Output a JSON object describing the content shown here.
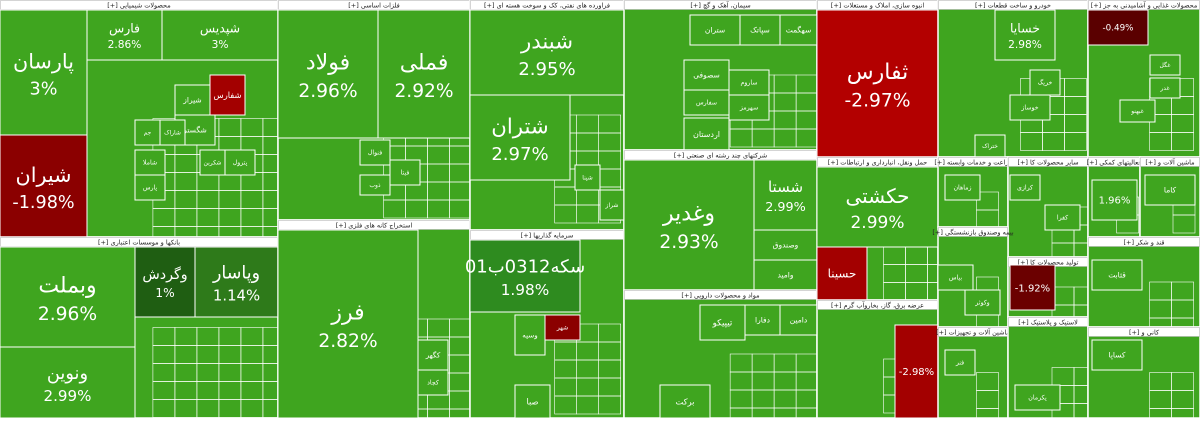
{
  "sectors": [
    {
      "title": "محصولات شیمیایی [+]",
      "tiles": [
        {
          "name": "پارسان",
          "change": "3%",
          "color": "#3fa51f"
        },
        {
          "name": "شیران",
          "change": "-1.98%",
          "color": "#8b0000"
        },
        {
          "name": "فارس",
          "change": "2.86%",
          "color": "#3fa51f"
        },
        {
          "name": "شپدیس",
          "change": "3%",
          "color": "#3fa51f"
        },
        {
          "name": "شیراز",
          "color": "#3fa51f"
        },
        {
          "name": "شفارس",
          "color": "#a30000"
        },
        {
          "name": "شگستر",
          "color": "#3fa51f"
        },
        {
          "name": "جم",
          "color": "#3fa51f"
        },
        {
          "name": "شاراک",
          "color": "#3fa51f"
        },
        {
          "name": "شاملا",
          "color": "#3fa51f"
        },
        {
          "name": "پارس",
          "color": "#3fa51f"
        },
        {
          "name": "پترول",
          "color": "#3fa51f"
        },
        {
          "name": "شکربن",
          "color": "#3fa51f"
        }
      ]
    },
    {
      "title": "بانکها و موسسات اعتباری [+]",
      "tiles": [
        {
          "name": "وبملت",
          "change": "2.96%",
          "color": "#3fa51f"
        },
        {
          "name": "ونوین",
          "change": "2.99%",
          "color": "#3fa51f"
        },
        {
          "name": "وگردش",
          "change": "1%",
          "color": "#1f5e12"
        },
        {
          "name": "وپاسار",
          "change": "1.14%",
          "color": "#2e7a1a"
        }
      ]
    },
    {
      "title": "فلزات اساسی [+]",
      "tiles": [
        {
          "name": "فولاد",
          "change": "2.96%",
          "color": "#3fa51f"
        },
        {
          "name": "فملی",
          "change": "2.92%",
          "color": "#3fa51f"
        },
        {
          "name": "فنوال",
          "color": "#3fa51f"
        },
        {
          "name": "ذوب",
          "color": "#3fa51f"
        },
        {
          "name": "فیتا",
          "color": "#3fa51f"
        }
      ]
    },
    {
      "title": "استخراج کانه های فلزی [+]",
      "tiles": [
        {
          "name": "فرز",
          "change": "2.82%",
          "color": "#3fa51f"
        },
        {
          "name": "کگهر",
          "color": "#3fa51f"
        },
        {
          "name": "کچاد",
          "color": "#3fa51f"
        }
      ]
    },
    {
      "title": "فراورده های نفتی، کک و سوخت هسته ای [+]",
      "tiles": [
        {
          "name": "شبندر",
          "change": "2.95%",
          "color": "#3fa51f"
        },
        {
          "name": "شتران",
          "change": "2.97%",
          "color": "#3fa51f"
        },
        {
          "name": "شراز",
          "color": "#3fa51f"
        },
        {
          "name": "شپنا",
          "color": "#3fa51f"
        }
      ]
    },
    {
      "title": "سرمایه گذاریها [+]",
      "tiles": [
        {
          "name": "سکه0312ب01",
          "change": "1.98%",
          "color": "#2e8b1f"
        },
        {
          "name": "شهر",
          "color": "#8b0000"
        },
        {
          "name": "وسپه",
          "color": "#3fa51f"
        },
        {
          "name": "صبا",
          "color": "#3fa51f"
        }
      ]
    },
    {
      "title": "سیمان، آهک و گچ [+]",
      "tiles": [
        {
          "name": "ستران",
          "color": "#3fa51f"
        },
        {
          "name": "سپاتک",
          "color": "#3fa51f"
        },
        {
          "name": "سهگمت",
          "color": "#3fa51f"
        },
        {
          "name": "سصوفی",
          "color": "#3fa51f"
        },
        {
          "name": "سفارس",
          "color": "#3fa51f"
        },
        {
          "name": "ساروم",
          "color": "#3fa51f"
        },
        {
          "name": "سهرمز",
          "color": "#3fa51f"
        },
        {
          "name": "اردستان",
          "color": "#3fa51f"
        }
      ]
    },
    {
      "title": "شرکتهای چند رشته ای صنعتی [+]",
      "tiles": [
        {
          "name": "وغدیر",
          "change": "2.93%",
          "color": "#3fa51f"
        },
        {
          "name": "شستا",
          "change": "2.99%",
          "color": "#3fa51f"
        },
        {
          "name": "وصندوق",
          "color": "#3fa51f"
        },
        {
          "name": "وامید",
          "color": "#3fa51f"
        }
      ]
    },
    {
      "title": "مواد و محصولات دارویی [+]",
      "tiles": [
        {
          "name": "تیپیکو",
          "color": "#3fa51f"
        },
        {
          "name": "دفارا",
          "color": "#3fa51f"
        },
        {
          "name": "دامین",
          "color": "#3fa51f"
        },
        {
          "name": "برکت",
          "color": "#3fa51f"
        }
      ]
    },
    {
      "title": "انبوه سازی، املاک و مستغلات [+]",
      "tiles": [
        {
          "name": "ثفارس",
          "change": "-2.97%",
          "color": "#b30000"
        }
      ]
    },
    {
      "title": "حمل ونقل، انبارداری و ارتباطات [+]",
      "tiles": [
        {
          "name": "حکشتی",
          "change": "2.99%",
          "color": "#3fa51f"
        },
        {
          "name": "حسینا",
          "color": "#a30000"
        }
      ]
    },
    {
      "title": "عرضه برق، گاز، بخاروآب گرم [+]",
      "tiles": [
        {
          "change": "-2.98%",
          "color": "#a30000"
        }
      ]
    },
    {
      "title": "خودرو و ساخت قطعات [+]",
      "tiles": [
        {
          "name": "خسایا",
          "change": "2.98%",
          "color": "#3fa51f"
        },
        {
          "name": "خریگ",
          "color": "#3fa51f"
        },
        {
          "name": "خوساز",
          "color": "#3fa51f"
        },
        {
          "name": "ختراک",
          "color": "#3fa51f"
        }
      ]
    },
    {
      "title": "زراعت و خدمات وابسته [+]",
      "tiles": [
        {
          "name": "زماهان",
          "color": "#3fa51f"
        }
      ]
    },
    {
      "title": "سایر محصولات کا [+]",
      "tiles": [
        {
          "name": "کرازی",
          "color": "#3fa51f"
        },
        {
          "name": "کفرا",
          "color": "#3fa51f"
        }
      ]
    },
    {
      "title": "بیمه وصندوق بازنشستگی [+]",
      "tiles": [
        {
          "name": "بیاس",
          "color": "#3fa51f"
        },
        {
          "name": "وکوثر",
          "color": "#3fa51f"
        }
      ]
    },
    {
      "title": "تولید محصولات کا [+]",
      "tiles": [
        {
          "change": "-1.92%",
          "color": "#6b0000"
        }
      ]
    },
    {
      "title": "ماشین آلات و تجهیزات [+]",
      "tiles": [
        {
          "name": "فنر",
          "color": "#3fa51f"
        }
      ]
    },
    {
      "title": "لاستیک و پلاستیک [+]",
      "tiles": [
        {
          "name": "پکرمان",
          "color": "#3fa51f"
        }
      ]
    },
    {
      "title": "محصولات غذایی و آشامیدنی به جز [+]",
      "tiles": [
        {
          "change": "-0.49%",
          "color": "#5a0000"
        },
        {
          "name": "غگل",
          "color": "#3fa51f"
        },
        {
          "name": "غدر",
          "color": "#3fa51f"
        },
        {
          "name": "غبهنو",
          "color": "#3fa51f"
        }
      ]
    },
    {
      "title": "فعالیتهای کمکی [+]",
      "tiles": [
        {
          "change": "1.96%",
          "color": "#3fa51f"
        }
      ]
    },
    {
      "title": "ماشین آلات و [+]",
      "tiles": [
        {
          "name": "کاما",
          "color": "#3fa51f"
        }
      ]
    },
    {
      "title": "قند و شکر [+]",
      "tiles": [
        {
          "name": "قثابت",
          "color": "#3fa51f"
        }
      ]
    },
    {
      "title": "کانی و [+]",
      "tiles": [
        {
          "name": "کساپا",
          "color": "#3fa51f"
        }
      ]
    }
  ]
}
